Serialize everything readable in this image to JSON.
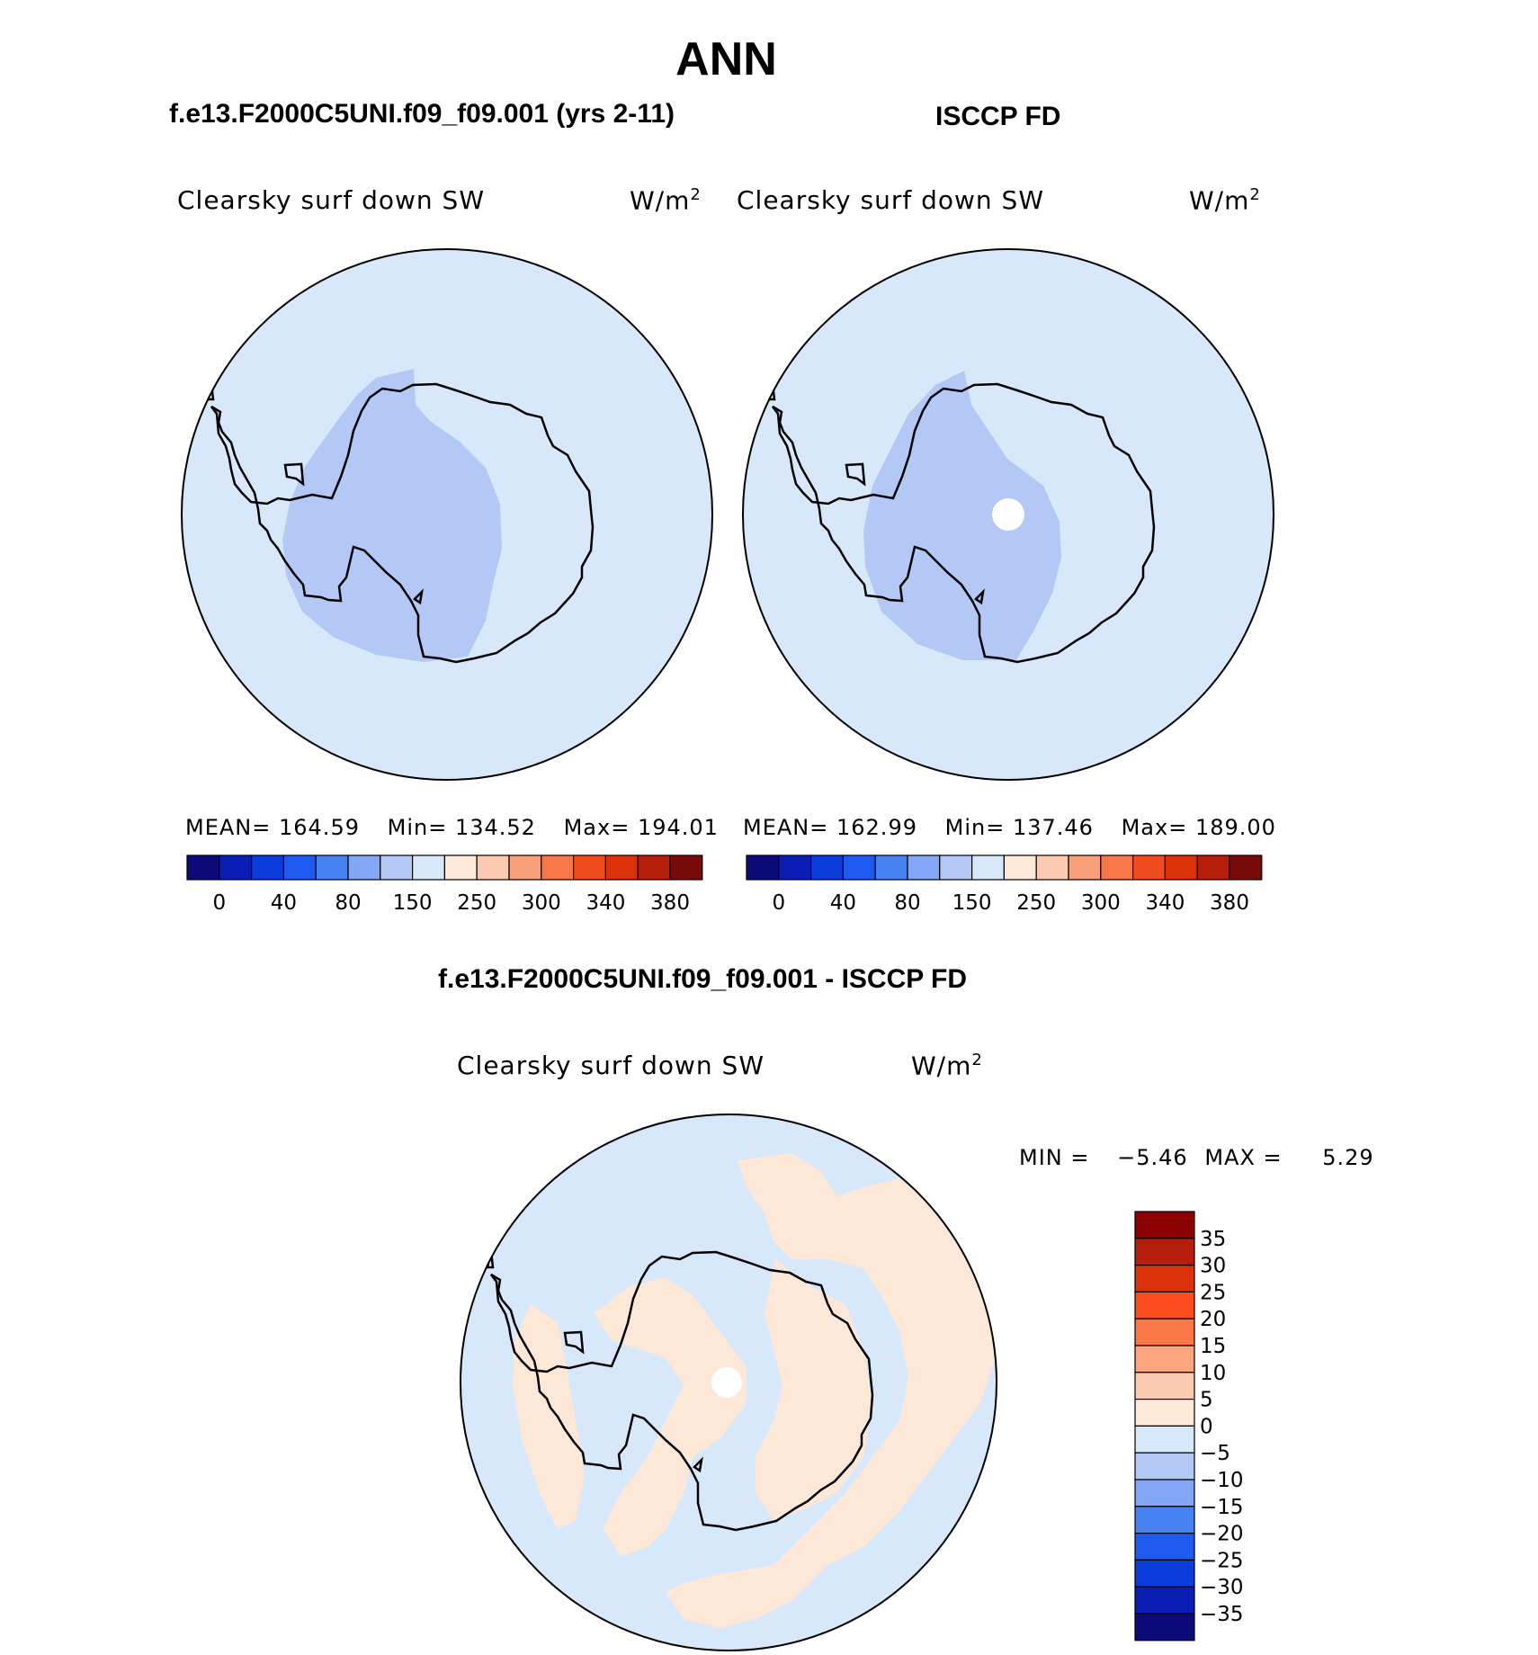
{
  "title": "ANN",
  "panels": [
    {
      "heading": "f.e13.F2000C5UNI.f09_f09.001 (yrs 2-11)",
      "variable": "Clearsky  surf  down  SW",
      "units": "W/m",
      "units_exp": "2",
      "stats": {
        "mean_label": "MEAN=",
        "mean": "164.59",
        "min_label": "Min=",
        "min": "134.52",
        "max_label": "Max=",
        "max": "194.01"
      }
    },
    {
      "heading": "ISCCP FD",
      "variable": "Clearsky  surf  down  SW",
      "units": "W/m",
      "units_exp": "2",
      "stats": {
        "mean_label": "MEAN=",
        "mean": "162.99",
        "min_label": "Min=",
        "min": "137.46",
        "max_label": "Max=",
        "max": "189.00"
      }
    }
  ],
  "top_colorbar": {
    "colors": [
      "#0a0a78",
      "#0a1eb4",
      "#0a3cdc",
      "#1e5af0",
      "#4682f0",
      "#82a5f5",
      "#b4c8f5",
      "#d7e8fa",
      "#fde8d8",
      "#fccab0",
      "#f8a07a",
      "#f67848",
      "#f04c1e",
      "#dc320a",
      "#b41e0a",
      "#780a0a"
    ],
    "labels": [
      "0",
      "40",
      "80",
      "150",
      "250",
      "300",
      "340",
      "380"
    ]
  },
  "difference": {
    "heading": "f.e13.F2000C5UNI.f09_f09.001 - ISCCP FD",
    "variable": "Clearsky  surf  down  SW",
    "units": "W/m",
    "units_exp": "2",
    "min_label": "MIN =",
    "min": "−5.46",
    "max_label": "MAX =",
    "max": "5.29",
    "colorbar": {
      "colors_top_to_bottom": [
        "#8b0000",
        "#b41e0a",
        "#dc320a",
        "#fa4c1e",
        "#fa7846",
        "#fca57e",
        "#fccab0",
        "#fde8d8",
        "#d7e8fa",
        "#b4c8f5",
        "#82a5f5",
        "#4682f0",
        "#1e5af0",
        "#0a3cdc",
        "#0a1eb4",
        "#0a0a78"
      ],
      "labels": [
        "35",
        "30",
        "25",
        "20",
        "15",
        "10",
        "5",
        "0",
        "−5",
        "−10",
        "−15",
        "−20",
        "−25",
        "−30",
        "−35"
      ]
    }
  },
  "colors": {
    "ocean": "#d7e8fa",
    "level_low": "#b4c8f5",
    "positive_diff": "#fde8d8",
    "missing": "#ffffff"
  }
}
